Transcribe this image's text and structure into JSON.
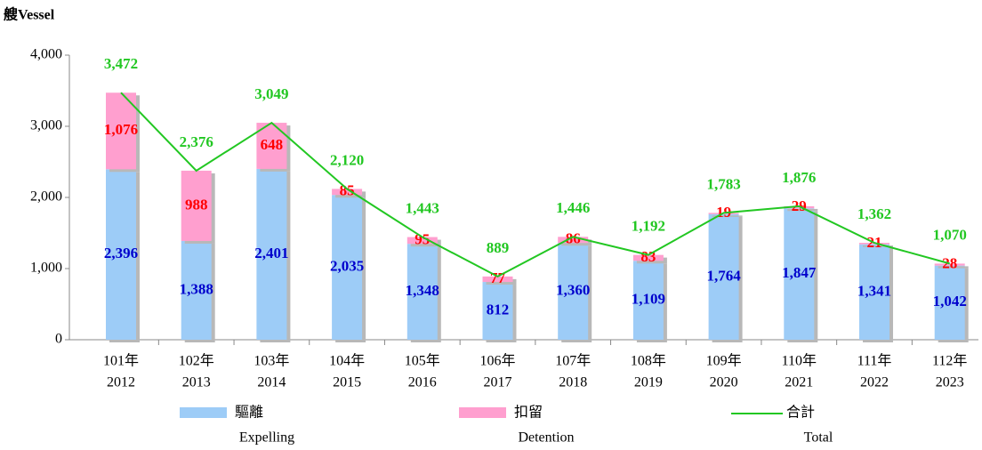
{
  "chart_data": {
    "type": "stacked-bar-line",
    "y_label": "艘Vessel",
    "categories": [
      [
        "101年",
        "2012"
      ],
      [
        "102年",
        "2013"
      ],
      [
        "103年",
        "2014"
      ],
      [
        "104年",
        "2015"
      ],
      [
        "105年",
        "2016"
      ],
      [
        "106年",
        "2017"
      ],
      [
        "107年",
        "2018"
      ],
      [
        "108年",
        "2019"
      ],
      [
        "109年",
        "2020"
      ],
      [
        "110年",
        "2021"
      ],
      [
        "111年",
        "2022"
      ],
      [
        "112年",
        "2023"
      ]
    ],
    "ylim": [
      0,
      4000
    ],
    "yticks": [
      0,
      {
        "value": 1000,
        "label": "1,000"
      },
      {
        "value": 2000,
        "label": "2,000"
      },
      {
        "value": 3000,
        "label": "3,000"
      },
      {
        "value": 4000,
        "label": "4,000"
      }
    ],
    "series": [
      {
        "name": "驅離",
        "name_en": "Expelling",
        "type": "bar",
        "color": "#9dccf7",
        "label_color": "#0000cc",
        "values": [
          2396,
          1388,
          2401,
          2035,
          1348,
          812,
          1360,
          1109,
          1764,
          1847,
          1341,
          1042
        ],
        "value_labels": [
          "2,396",
          "1,388",
          "2,401",
          "2,035",
          "1,348",
          "812",
          "1,360",
          "1,109",
          "1,764",
          "1,847",
          "1,341",
          "1,042"
        ]
      },
      {
        "name": "扣留",
        "name_en": "Detention",
        "type": "bar",
        "color": "#ff9fcf",
        "label_color": "#ff0000",
        "values": [
          1076,
          988,
          648,
          85,
          95,
          77,
          86,
          83,
          19,
          29,
          21,
          28
        ],
        "value_labels": [
          "1,076",
          "988",
          "648",
          "85",
          "95",
          "77",
          "86",
          "83",
          "19",
          "29",
          "21",
          "28"
        ]
      },
      {
        "name": "合計",
        "name_en": "Total",
        "type": "line",
        "color": "#22c722",
        "label_color": "#22c722",
        "values": [
          3472,
          2376,
          3049,
          2120,
          1443,
          889,
          1446,
          1192,
          1783,
          1876,
          1362,
          1070
        ],
        "value_labels": [
          "3,472",
          "2,376",
          "3,049",
          "2,120",
          "1,443",
          "889",
          "1,446",
          "1,192",
          "1,783",
          "1,876",
          "1,362",
          "1,070"
        ]
      }
    ]
  }
}
